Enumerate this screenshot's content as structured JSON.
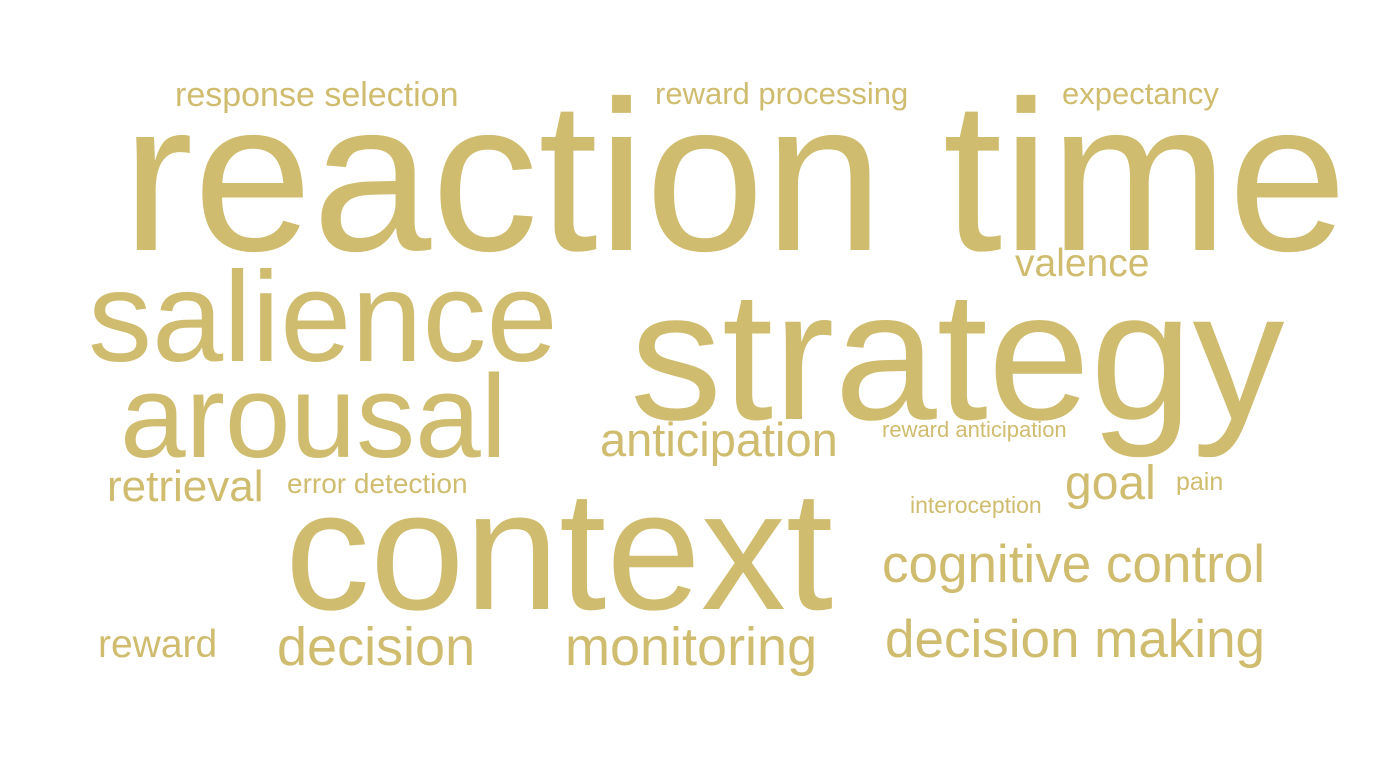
{
  "word_cloud": {
    "color": "#cfbc6e",
    "words": {
      "response_selection": "response selection",
      "reward_processing": "reward processing",
      "expectancy": "expectancy",
      "reaction_time": "reaction time",
      "valence": "valence",
      "salience": "salience",
      "strategy": "strategy",
      "arousal": "arousal",
      "anticipation": "anticipation",
      "reward_anticipation": "reward anticipation",
      "retrieval": "retrieval",
      "error_detection": "error detection",
      "goal": "goal",
      "pain": "pain",
      "interoception": "interoception",
      "context": "context",
      "cognitive_control": "cognitive control",
      "reward": "reward",
      "decision": "decision",
      "monitoring": "monitoring",
      "decision_making": "decision making"
    }
  }
}
